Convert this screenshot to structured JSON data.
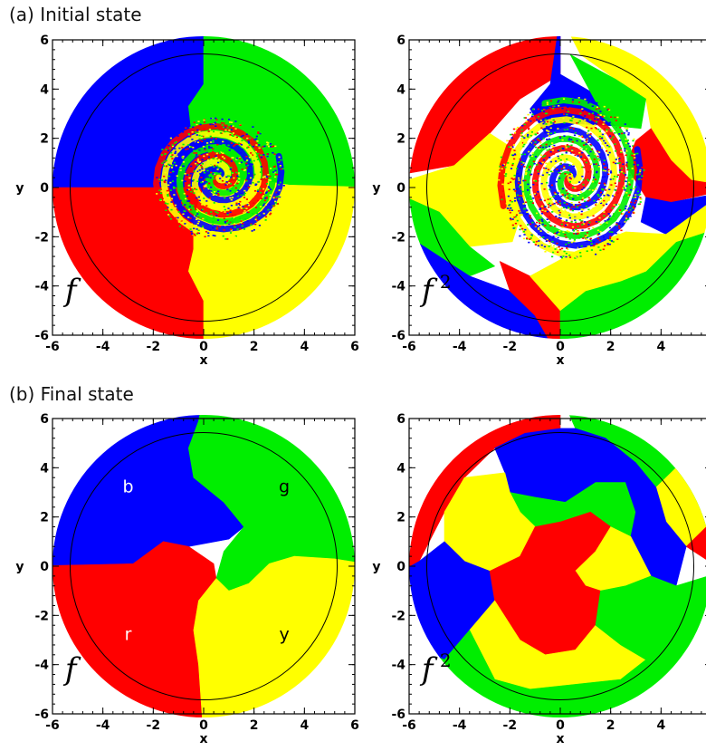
{
  "sections": {
    "a": {
      "title": "(a) Initial state"
    },
    "b": {
      "title": "(b) Final state"
    }
  },
  "colors": {
    "blue": "#0000ff",
    "green": "#00ee00",
    "red": "#ff0000",
    "yellow": "#ffff00",
    "circle": "#000000"
  },
  "chart_data": [
    {
      "id": "a-f",
      "type": "heatmap",
      "section": "(a) Initial state",
      "function_label": "f",
      "exponent": "",
      "xlabel": "x",
      "ylabel": "y",
      "xlim": [
        -6,
        6
      ],
      "ylim": [
        -6,
        6
      ],
      "xticks": [
        -6,
        -4,
        -2,
        0,
        2,
        4,
        6
      ],
      "yticks": [
        -6,
        -4,
        -2,
        0,
        2,
        4,
        6
      ],
      "disk_radius": 6,
      "circle_radius": 5.3,
      "region_labels": []
    },
    {
      "id": "a-f2",
      "type": "heatmap",
      "section": "(a) Initial state",
      "function_label": "f",
      "exponent": "2",
      "xlabel": "x",
      "ylabel": "y",
      "xlim": [
        -6,
        6
      ],
      "ylim": [
        -6,
        6
      ],
      "xticks": [
        -6,
        -4,
        -2,
        0,
        2,
        4,
        6
      ],
      "yticks": [
        -6,
        -4,
        -2,
        0,
        2,
        4,
        6
      ],
      "disk_radius": 6,
      "circle_radius": 5.3,
      "region_labels": []
    },
    {
      "id": "b-f",
      "type": "heatmap",
      "section": "(b) Final state",
      "function_label": "f",
      "exponent": "",
      "xlabel": "x",
      "ylabel": "y",
      "xlim": [
        -6,
        6
      ],
      "ylim": [
        -6,
        6
      ],
      "xticks": [
        -6,
        -4,
        -2,
        0,
        2,
        4,
        6
      ],
      "yticks": [
        -6,
        -4,
        -2,
        0,
        2,
        4,
        6
      ],
      "disk_radius": 6,
      "circle_radius": 5.3,
      "region_labels": [
        {
          "text": "b",
          "x": -3.0,
          "y": 3.0,
          "color": "#ffffff"
        },
        {
          "text": "g",
          "x": 3.2,
          "y": 3.0,
          "color": "#000000"
        },
        {
          "text": "r",
          "x": -3.0,
          "y": -3.0,
          "color": "#ffffff"
        },
        {
          "text": "y",
          "x": 3.2,
          "y": -3.0,
          "color": "#000000"
        }
      ]
    },
    {
      "id": "b-f2",
      "type": "heatmap",
      "section": "(b) Final state",
      "function_label": "f",
      "exponent": "2",
      "xlabel": "x",
      "ylabel": "y",
      "xlim": [
        -6,
        6
      ],
      "ylim": [
        -6,
        6
      ],
      "xticks": [
        -6,
        -4,
        -2,
        0,
        2,
        4,
        6
      ],
      "yticks": [
        -6,
        -4,
        -2,
        0,
        2,
        4,
        6
      ],
      "disk_radius": 6,
      "circle_radius": 5.3,
      "region_labels": []
    }
  ]
}
